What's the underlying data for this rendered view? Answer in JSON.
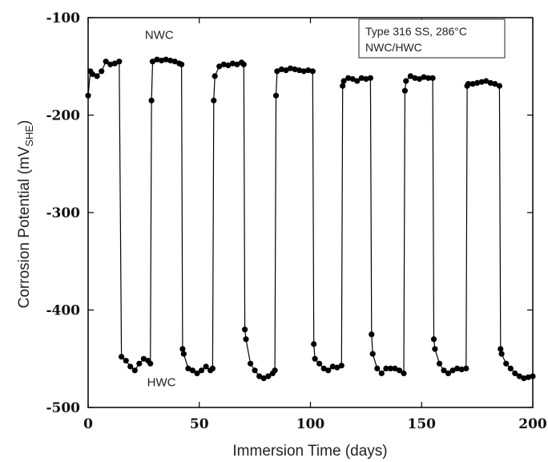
{
  "chart_data": {
    "type": "line",
    "title": "",
    "xlabel": "Immersion Time (days)",
    "ylabel_main": "Corrosion Potential (mV",
    "ylabel_sub": "SHE",
    "ylabel_end": ")",
    "xlim": [
      0,
      200
    ],
    "ylim": [
      -500,
      -100
    ],
    "xticks": [
      0,
      50,
      100,
      150,
      200
    ],
    "yticks": [
      -100,
      -200,
      -300,
      -400,
      -500
    ],
    "grid": false,
    "legend": {
      "placement": "top-right",
      "lines": [
        "Type 316 SS, 286°C",
        "NWC/HWC"
      ]
    },
    "annotations": [
      {
        "text": "NWC",
        "x": 32,
        "y": -122
      },
      {
        "text": "HWC",
        "x": 33,
        "y": -478
      }
    ],
    "series": [
      {
        "color": "#000000",
        "x": [
          0,
          1,
          2,
          4,
          6,
          8,
          10,
          12,
          14,
          15,
          17,
          19,
          21,
          23,
          25,
          27,
          28,
          28.5,
          29,
          31,
          33,
          35,
          37,
          39,
          41,
          42,
          42.5,
          43,
          45,
          47,
          49,
          51,
          53,
          55,
          56,
          56.5,
          57,
          59,
          61,
          63,
          65,
          67,
          69,
          70,
          70.5,
          71,
          73,
          75,
          77,
          79,
          81,
          83,
          84,
          84.5,
          85,
          87,
          89,
          91,
          93,
          95,
          97,
          99,
          101,
          101.5,
          102,
          104,
          106,
          108,
          110,
          112,
          114,
          114.5,
          115,
          117,
          119,
          121,
          123,
          125,
          127,
          127.5,
          128,
          130,
          132,
          134,
          136,
          138,
          140,
          142,
          142.5,
          143,
          145,
          147,
          149,
          151,
          153,
          155,
          155.5,
          156,
          158,
          160,
          162,
          164,
          166,
          168,
          170,
          170.5,
          171,
          173,
          175,
          177,
          179,
          181,
          183,
          185,
          185.5,
          186,
          188,
          190,
          192,
          194,
          196,
          198,
          200
        ],
        "y": [
          -180,
          -155,
          -158,
          -160,
          -155,
          -145,
          -148,
          -147,
          -145,
          -448,
          -452,
          -458,
          -462,
          -455,
          -450,
          -452,
          -455,
          -185,
          -145,
          -143,
          -144,
          -143,
          -144,
          -145,
          -147,
          -148,
          -440,
          -445,
          -460,
          -462,
          -465,
          -462,
          -458,
          -462,
          -460,
          -185,
          -160,
          -150,
          -148,
          -149,
          -147,
          -148,
          -146,
          -148,
          -420,
          -430,
          -455,
          -462,
          -468,
          -470,
          -468,
          -465,
          -462,
          -180,
          -155,
          -153,
          -154,
          -152,
          -153,
          -154,
          -155,
          -154,
          -155,
          -435,
          -450,
          -455,
          -460,
          -462,
          -458,
          -459,
          -457,
          -170,
          -165,
          -162,
          -163,
          -165,
          -162,
          -163,
          -162,
          -425,
          -445,
          -460,
          -465,
          -460,
          -460,
          -460,
          -462,
          -465,
          -175,
          -165,
          -160,
          -162,
          -163,
          -161,
          -162,
          -162,
          -430,
          -440,
          -455,
          -462,
          -465,
          -462,
          -460,
          -461,
          -460,
          -170,
          -168,
          -168,
          -167,
          -166,
          -165,
          -167,
          -168,
          -170,
          -440,
          -445,
          -455,
          -460,
          -465,
          -468,
          -470,
          -469,
          -468
        ]
      }
    ]
  }
}
